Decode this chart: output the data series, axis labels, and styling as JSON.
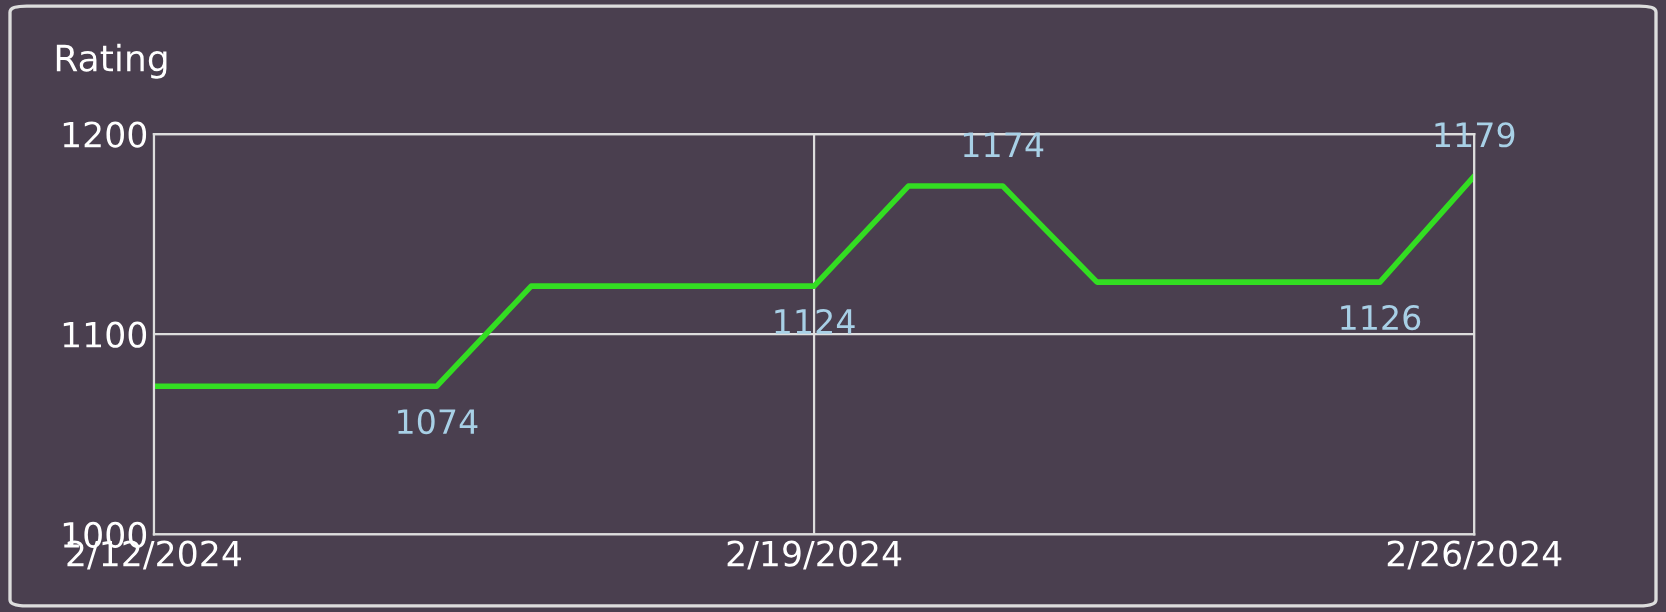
{
  "chart_data": {
    "type": "line",
    "ylabel": "Rating",
    "x": [
      "2024-02-12",
      "2024-02-13",
      "2024-02-14",
      "2024-02-15",
      "2024-02-16",
      "2024-02-17",
      "2024-02-18",
      "2024-02-19",
      "2024-02-20",
      "2024-02-21",
      "2024-02-22",
      "2024-02-23",
      "2024-02-24",
      "2024-02-25",
      "2024-02-26"
    ],
    "series": [
      {
        "color": "#33dd22",
        "values": [
          1074,
          1074,
          1074,
          1074,
          1124,
          1124,
          1124,
          1124,
          1174,
          1174,
          1126,
          1126,
          1126,
          1126,
          1179
        ],
        "value_labels": [
          null,
          null,
          null,
          "1074",
          null,
          null,
          null,
          "1124",
          null,
          "1174",
          null,
          null,
          null,
          "1126",
          "1179"
        ]
      }
    ],
    "xlim": [
      "2024-02-12",
      "2024-02-26"
    ],
    "xticks": [
      {
        "value": "2024-02-12",
        "label": "2/12/2024"
      },
      {
        "value": "2024-02-19",
        "label": "2/19/2024"
      },
      {
        "value": "2024-02-26",
        "label": "2/26/2024"
      }
    ],
    "ylim": [
      1000,
      1200
    ],
    "yticks": [
      1000,
      1100,
      1200
    ],
    "grid": true,
    "legend": false,
    "marker": "none",
    "line_style": "solid"
  }
}
